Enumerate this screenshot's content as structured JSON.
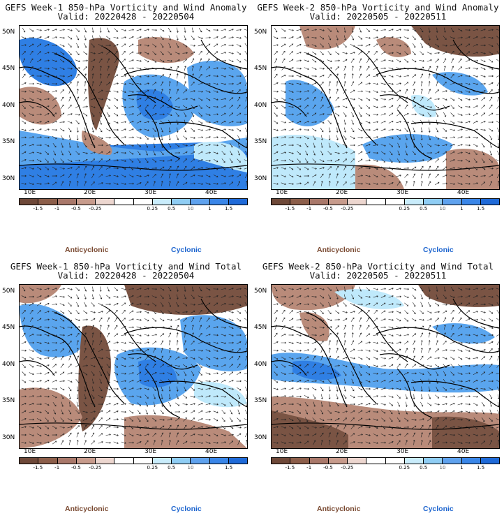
{
  "panels": [
    {
      "title": "GEFS Week-1 850-hPa Vorticity and Wind Anomaly",
      "valid": "Valid: 20220428 - 20220504",
      "pattern": "p1"
    },
    {
      "title": "GEFS Week-2 850-hPa Vorticity and Wind Anomaly",
      "valid": "Valid: 20220505 - 20220511",
      "pattern": "p2"
    },
    {
      "title": "GEFS Week-1 850-hPa Vorticity and Wind Total",
      "valid": "Valid: 20220428 - 20220504",
      "pattern": "p3"
    },
    {
      "title": "GEFS Week-2 850-hPa Vorticity and Wind Total",
      "valid": "Valid: 20220505 - 20220511",
      "pattern": "p4"
    }
  ],
  "lat_labels": [
    "50N",
    "45N",
    "40N",
    "35N",
    "30N"
  ],
  "lon_labels": [
    "10E",
    "20E",
    "30E",
    "40E"
  ],
  "colorbar": {
    "labels": [
      "-1.5",
      "-1",
      "-0.5",
      "-0.25",
      "0.25",
      "0.5",
      "1",
      "1.5"
    ],
    "unit_label": "10",
    "colors": [
      "#6e4838",
      "#8c5e4a",
      "#a9786a",
      "#c79b8c",
      "#ecd6cf",
      "#ffffff",
      "#ffffff",
      "#c9ecfb",
      "#8fcdf4",
      "#5fa2ee",
      "#3a86e8",
      "#1f6ad8"
    ]
  },
  "legend": {
    "anticyclonic": "Anticyclonic",
    "cyclonic": "Cyclonic"
  },
  "shading_colors": {
    "strong_anti": "#7a5444",
    "anti": "#b98b7a",
    "neutral": "#ffffff",
    "cyclonic_light": "#bfe9fb",
    "cyclonic": "#5aa5ee",
    "strong_cyc": "#2f7fe4"
  }
}
